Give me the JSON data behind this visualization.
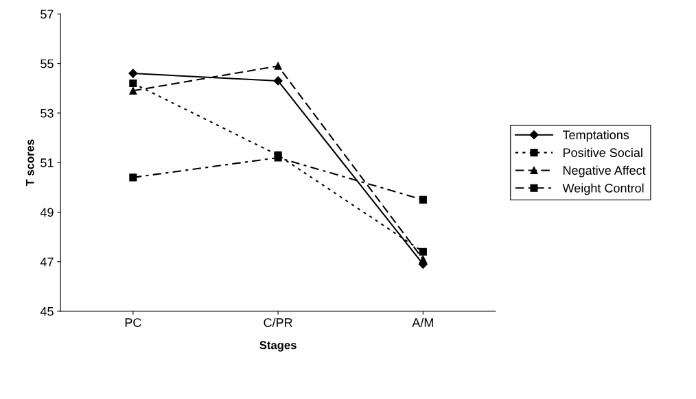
{
  "chart_data": {
    "type": "line",
    "xlabel": "Stages",
    "ylabel": "T scores",
    "categories": [
      "PC",
      "C/PR",
      "A/M"
    ],
    "series": [
      {
        "name": "Temptations",
        "color": "#000000",
        "values": [
          54.6,
          54.3,
          46.9
        ],
        "marker": "diamond",
        "line_style": "solid"
      },
      {
        "name": "Positive Social",
        "color": "#000000",
        "values": [
          54.2,
          51.3,
          47.4
        ],
        "marker": "square",
        "line_style": "dotted"
      },
      {
        "name": "Negative Affect",
        "color": "#000000",
        "values": [
          53.9,
          54.9,
          47.1
        ],
        "marker": "triangle",
        "line_style": "dashed"
      },
      {
        "name": "Weight Control",
        "color": "#000000",
        "values": [
          50.4,
          51.2,
          49.5
        ],
        "marker": "square",
        "line_style": "dashdot"
      }
    ],
    "ylim": [
      45,
      57
    ],
    "yticks": [
      45,
      47,
      49,
      51,
      53,
      55,
      57
    ],
    "grid": false,
    "legend": "right"
  }
}
